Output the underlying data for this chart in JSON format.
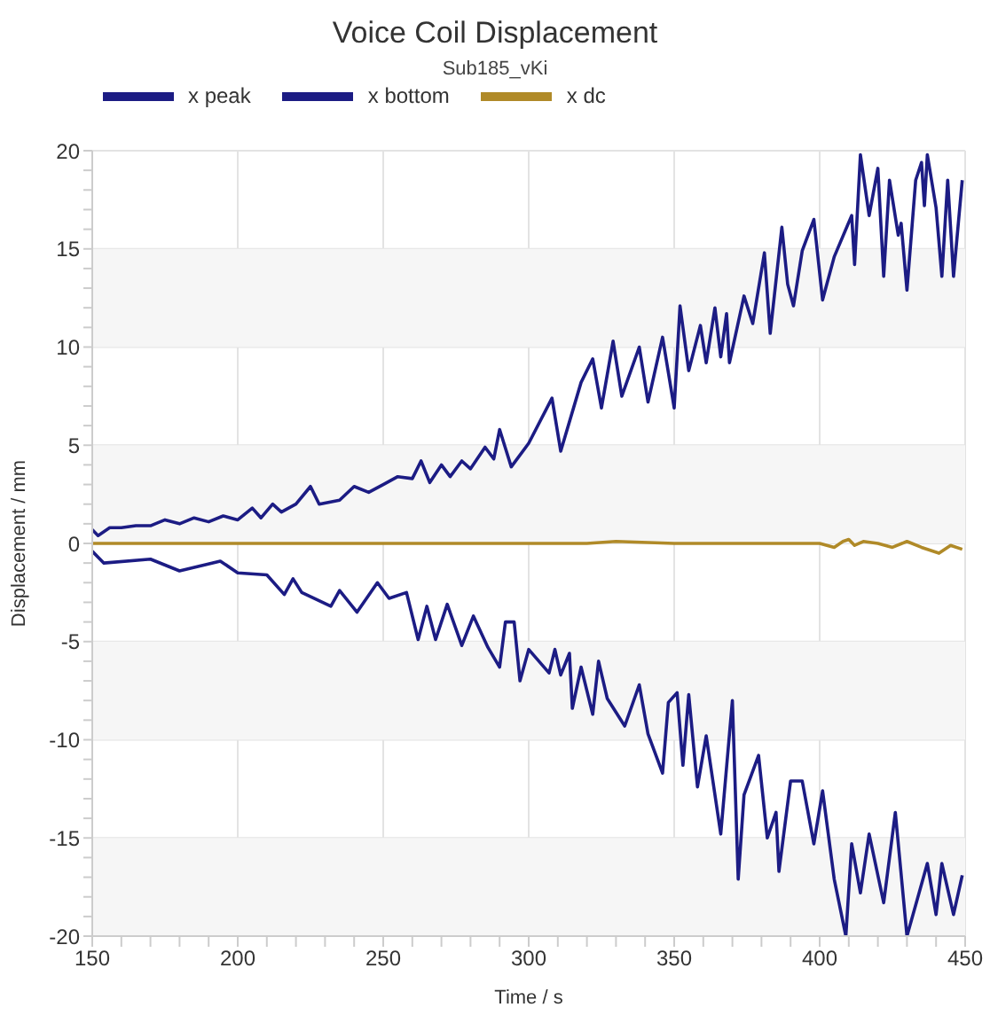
{
  "chart_data": {
    "type": "line",
    "title": "Voice Coil Displacement",
    "subtitle": "Sub185_vKi",
    "xlabel": "Time / s",
    "ylabel": "Displacement / mm",
    "xlim": [
      150,
      450
    ],
    "ylim": [
      -20,
      20
    ],
    "xticks": [
      150,
      {
        "value": 160,
        "label": null
      },
      {
        "value": 170,
        "label": null
      },
      {
        "value": 180,
        "label": null
      },
      {
        "value": 190,
        "label": null
      },
      200,
      {
        "value": 210,
        "label": null
      },
      {
        "value": 220,
        "label": null
      },
      {
        "value": 230,
        "label": null
      },
      {
        "value": 240,
        "label": null
      },
      250,
      {
        "value": 260,
        "label": null
      },
      {
        "value": 270,
        "label": null
      },
      {
        "value": 280,
        "label": null
      },
      {
        "value": 290,
        "label": null
      },
      300,
      {
        "value": 310,
        "label": null
      },
      {
        "value": 320,
        "label": null
      },
      {
        "value": 330,
        "label": null
      },
      {
        "value": 340,
        "label": null
      },
      350,
      {
        "value": 360,
        "label": null
      },
      {
        "value": 370,
        "label": null
      },
      {
        "value": 380,
        "label": null
      },
      {
        "value": 390,
        "label": null
      },
      400,
      {
        "value": 410,
        "label": null
      },
      {
        "value": 420,
        "label": null
      },
      {
        "value": 430,
        "label": null
      },
      {
        "value": 440,
        "label": null
      },
      450
    ],
    "yticks": [
      -20,
      {
        "value": -19,
        "label": null
      },
      {
        "value": -18,
        "label": null
      },
      {
        "value": -17,
        "label": null
      },
      {
        "value": -16,
        "label": null
      },
      -15,
      {
        "value": -14,
        "label": null
      },
      {
        "value": -13,
        "label": null
      },
      {
        "value": -12,
        "label": null
      },
      {
        "value": -11,
        "label": null
      },
      -10,
      {
        "value": -9,
        "label": null
      },
      {
        "value": -8,
        "label": null
      },
      {
        "value": -7,
        "label": null
      },
      {
        "value": -6,
        "label": null
      },
      -5,
      {
        "value": -4,
        "label": null
      },
      {
        "value": -3,
        "label": null
      },
      {
        "value": -2,
        "label": null
      },
      {
        "value": -1,
        "label": null
      },
      0,
      {
        "value": 1,
        "label": null
      },
      {
        "value": 2,
        "label": null
      },
      {
        "value": 3,
        "label": null
      },
      {
        "value": 4,
        "label": null
      },
      5,
      {
        "value": 6,
        "label": null
      },
      {
        "value": 7,
        "label": null
      },
      {
        "value": 8,
        "label": null
      },
      {
        "value": 9,
        "label": null
      },
      10,
      {
        "value": 11,
        "label": null
      },
      {
        "value": 12,
        "label": null
      },
      {
        "value": 13,
        "label": null
      },
      {
        "value": 14,
        "label": null
      },
      15,
      {
        "value": 16,
        "label": null
      },
      {
        "value": 17,
        "label": null
      },
      {
        "value": 18,
        "label": null
      },
      {
        "value": 19,
        "label": null
      },
      20
    ],
    "grid": true,
    "legend": "top left",
    "bands": [
      {
        "axis": "y",
        "from": 10,
        "to": 15,
        "color": "#f6f6f6"
      },
      {
        "axis": "y",
        "from": 0,
        "to": 5,
        "color": "#f6f6f6"
      },
      {
        "axis": "y",
        "from": -10,
        "to": -5,
        "color": "#f6f6f6"
      },
      {
        "axis": "y",
        "from": -20,
        "to": -15,
        "color": "#f6f6f6"
      }
    ],
    "series": [
      {
        "name": "x peak",
        "color": "#1c1c84",
        "x": [
          150,
          152,
          156,
          160,
          165,
          170,
          175,
          180,
          185,
          190,
          195,
          200,
          205,
          208,
          212,
          215,
          220,
          225,
          228,
          235,
          240,
          245,
          250,
          255,
          260,
          263,
          266,
          270,
          273,
          277,
          280,
          285,
          288,
          290,
          294,
          300,
          308,
          311,
          318,
          322,
          325,
          329,
          332,
          338,
          341,
          346,
          350,
          352,
          355,
          359,
          361,
          364,
          366,
          368,
          369,
          374,
          377,
          381,
          383,
          387,
          389,
          391,
          394,
          398,
          401,
          405,
          411,
          412,
          414,
          417,
          420,
          422,
          424,
          427,
          428,
          430,
          433,
          435,
          436,
          437,
          440,
          442,
          444,
          446,
          449
        ],
        "values": [
          0.7,
          0.4,
          0.8,
          0.8,
          0.9,
          0.9,
          1.2,
          1.0,
          1.3,
          1.1,
          1.4,
          1.2,
          1.8,
          1.3,
          2.0,
          1.6,
          2.0,
          2.9,
          2.0,
          2.2,
          2.9,
          2.6,
          3.0,
          3.4,
          3.3,
          4.2,
          3.1,
          4.0,
          3.4,
          4.2,
          3.8,
          4.9,
          4.3,
          5.8,
          3.9,
          5.1,
          7.4,
          4.7,
          8.2,
          9.4,
          6.9,
          10.3,
          7.5,
          10.0,
          7.2,
          10.5,
          6.9,
          12.1,
          8.8,
          11.1,
          9.2,
          12.0,
          9.5,
          11.7,
          9.2,
          12.6,
          11.2,
          14.8,
          10.7,
          16.1,
          13.2,
          12.1,
          14.9,
          16.5,
          12.4,
          14.6,
          16.7,
          14.2,
          19.8,
          16.7,
          19.1,
          13.6,
          18.5,
          15.7,
          16.3,
          12.9,
          18.5,
          19.4,
          17.2,
          19.8,
          17.1,
          13.6,
          18.5,
          13.6,
          18.5
        ]
      },
      {
        "name": "x bottom",
        "color": "#1c1c84",
        "x": [
          150,
          154,
          170,
          180,
          194,
          200,
          210,
          216,
          219,
          222,
          232,
          235,
          241,
          248,
          252,
          258,
          262,
          265,
          268,
          272,
          277,
          281,
          286,
          290,
          292,
          295,
          297,
          300,
          307,
          309,
          311,
          314,
          315,
          318,
          322,
          324,
          327,
          333,
          338,
          341,
          346,
          348,
          351,
          353,
          355,
          358,
          361,
          366,
          370,
          372,
          374,
          379,
          382,
          385,
          386,
          390,
          394,
          398,
          401,
          405,
          409,
          411,
          414,
          417,
          422,
          426,
          430,
          437,
          440,
          442,
          446,
          449
        ],
        "values": [
          -0.4,
          -1.0,
          -0.8,
          -1.4,
          -0.9,
          -1.5,
          -1.6,
          -2.6,
          -1.8,
          -2.5,
          -3.2,
          -2.4,
          -3.5,
          -2.0,
          -2.8,
          -2.5,
          -4.9,
          -3.2,
          -4.9,
          -3.1,
          -5.2,
          -3.7,
          -5.3,
          -6.3,
          -4.0,
          -4.0,
          -7.0,
          -5.4,
          -6.6,
          -5.4,
          -6.7,
          -5.6,
          -8.4,
          -6.3,
          -8.7,
          -6.0,
          -7.9,
          -9.3,
          -7.2,
          -9.7,
          -11.7,
          -8.1,
          -7.6,
          -11.3,
          -7.7,
          -12.4,
          -9.8,
          -14.8,
          -8.0,
          -17.1,
          -12.8,
          -10.8,
          -15.0,
          -13.7,
          -16.7,
          -12.1,
          -12.1,
          -15.3,
          -12.6,
          -17.1,
          -20.0,
          -15.3,
          -17.8,
          -14.8,
          -18.3,
          -13.7,
          -20.0,
          -16.3,
          -18.9,
          -16.3,
          -18.9,
          -16.9
        ]
      },
      {
        "name": "x dc",
        "color": "#b08a28",
        "x": [
          150,
          200,
          250,
          280,
          300,
          320,
          330,
          350,
          370,
          390,
          400,
          405,
          408,
          410,
          412,
          415,
          420,
          425,
          430,
          435,
          441,
          445,
          449
        ],
        "values": [
          0.0,
          0.0,
          0.0,
          0.0,
          0.0,
          0.0,
          0.1,
          0.0,
          0.0,
          0.0,
          0.0,
          -0.2,
          0.1,
          0.2,
          -0.1,
          0.1,
          0.0,
          -0.2,
          0.1,
          -0.2,
          -0.5,
          -0.1,
          -0.3
        ]
      }
    ]
  }
}
